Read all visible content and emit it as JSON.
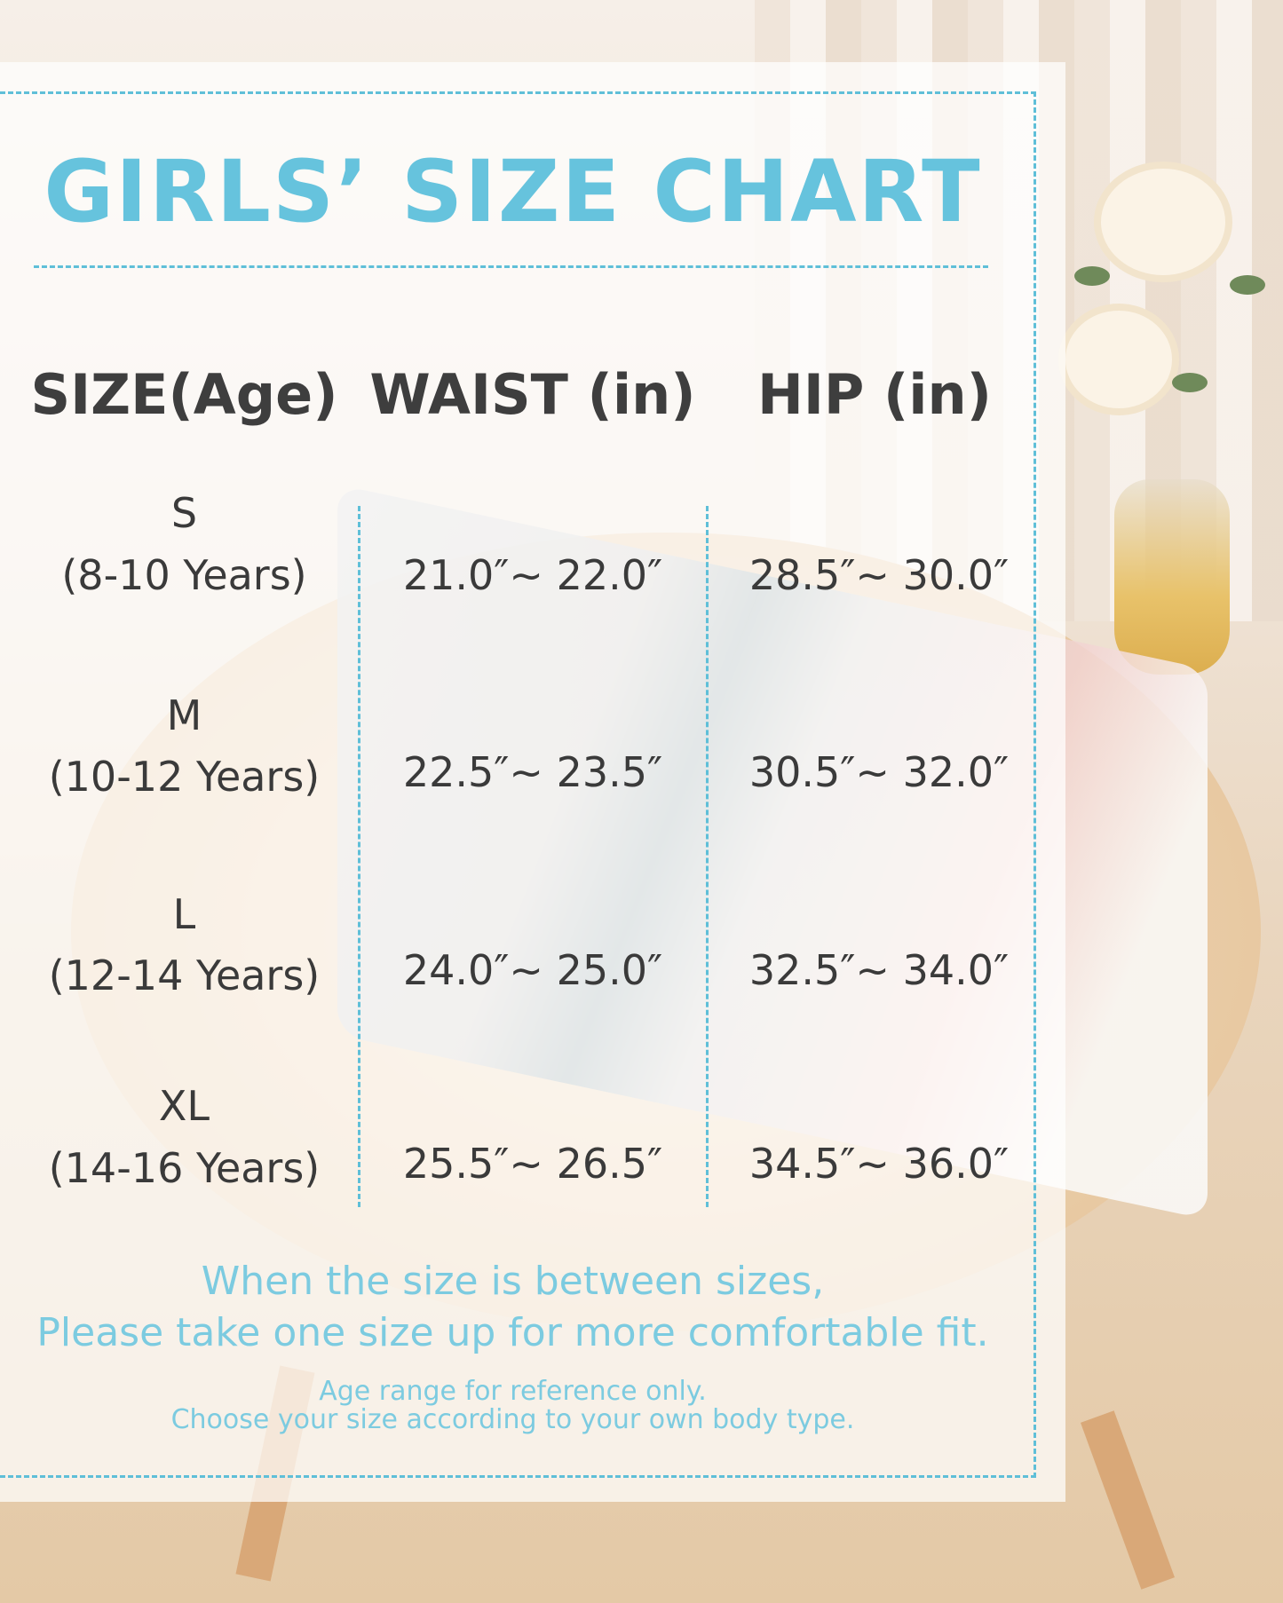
{
  "title": "GIRLS’ SIZE CHART",
  "colors": {
    "accent": "#66c3dd",
    "text": "#3e3e3e",
    "note": "#7ccbe0"
  },
  "table": {
    "headers": [
      "SIZE(Age)",
      "WAIST (in)",
      "HIP (in)"
    ],
    "rows": [
      {
        "size": "S",
        "age": "(8-10 Years)",
        "waist": "21.0″~ 22.0″",
        "hip": "28.5″~ 30.0″"
      },
      {
        "size": "M",
        "age": "(10-12 Years)",
        "waist": "22.5″~ 23.5″",
        "hip": "30.5″~ 32.0″"
      },
      {
        "size": "L",
        "age": "(12-14 Years)",
        "waist": "24.0″~ 25.0″",
        "hip": "32.5″~ 34.0″"
      },
      {
        "size": "XL",
        "age": "(14-16 Years)",
        "waist": "25.5″~ 26.5″",
        "hip": "34.5″~ 36.0″"
      }
    ]
  },
  "notes": {
    "line1": "When the size is between sizes,",
    "line2": "Please take one size up for more comfortable fit.",
    "line3": "Age range for reference only.",
    "line4": "Choose your size according to your own body type."
  }
}
